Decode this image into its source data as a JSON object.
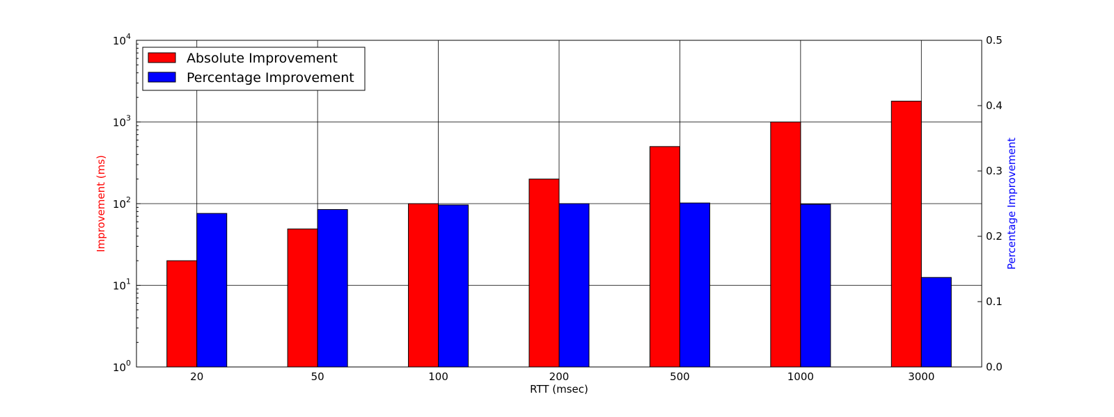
{
  "chart_data": {
    "type": "bar",
    "categories": [
      "20",
      "50",
      "100",
      "200",
      "500",
      "1000",
      "3000"
    ],
    "xlabel": "RTT (msec)",
    "grid": true,
    "legend_position": "top-left",
    "series": [
      {
        "name": "Absolute Improvement",
        "axis": "left",
        "color": "#ff0000",
        "values": [
          20,
          49,
          100,
          200,
          500,
          1000,
          1800
        ]
      },
      {
        "name": "Percentage Improvement",
        "axis": "right",
        "color": "#0000ff",
        "values": [
          0.235,
          0.241,
          0.248,
          0.25,
          0.251,
          0.249,
          0.137
        ]
      }
    ],
    "y_left": {
      "label": "Improvement (ms)",
      "scale": "log",
      "ylim": [
        1,
        10000
      ],
      "label_color": "#ff0000",
      "ticks": [
        {
          "value": 1,
          "base": "10",
          "exp": "0"
        },
        {
          "value": 10,
          "base": "10",
          "exp": "1"
        },
        {
          "value": 100,
          "base": "10",
          "exp": "2"
        },
        {
          "value": 1000,
          "base": "10",
          "exp": "3"
        },
        {
          "value": 10000,
          "base": "10",
          "exp": "4"
        }
      ]
    },
    "y_right": {
      "label": "Percentage Improvement",
      "scale": "linear",
      "ylim": [
        0,
        0.5
      ],
      "label_color": "#0000ff",
      "ticks": [
        "0.0",
        "0.1",
        "0.2",
        "0.3",
        "0.4",
        "0.5"
      ]
    }
  }
}
